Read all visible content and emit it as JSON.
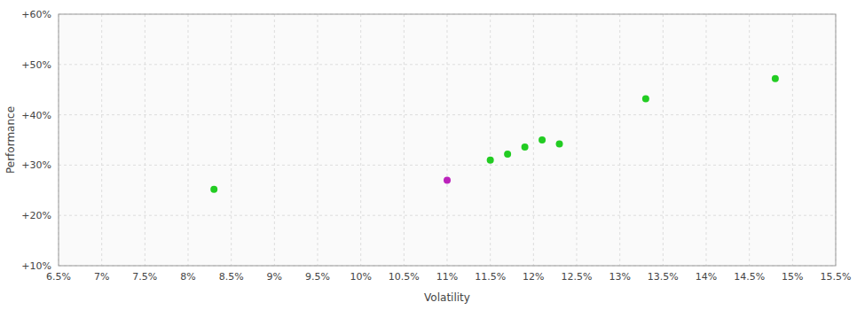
{
  "chart_data": {
    "type": "scatter",
    "xlabel": "Volatility",
    "ylabel": "Performance",
    "xlim": [
      0.065,
      0.155
    ],
    "ylim": [
      0.1,
      0.6
    ],
    "xticks": [
      {
        "value": 0.065,
        "label": "6.5%"
      },
      {
        "value": 0.07,
        "label": "7%"
      },
      {
        "value": 0.075,
        "label": "7.5%"
      },
      {
        "value": 0.08,
        "label": "8%"
      },
      {
        "value": 0.085,
        "label": "8.5%"
      },
      {
        "value": 0.09,
        "label": "9%"
      },
      {
        "value": 0.095,
        "label": "9.5%"
      },
      {
        "value": 0.1,
        "label": "10%"
      },
      {
        "value": 0.105,
        "label": "10.5%"
      },
      {
        "value": 0.11,
        "label": "11%"
      },
      {
        "value": 0.115,
        "label": "11.5%"
      },
      {
        "value": 0.12,
        "label": "12%"
      },
      {
        "value": 0.125,
        "label": "12.5%"
      },
      {
        "value": 0.13,
        "label": "13%"
      },
      {
        "value": 0.135,
        "label": "13.5%"
      },
      {
        "value": 0.14,
        "label": "14%"
      },
      {
        "value": 0.145,
        "label": "14.5%"
      },
      {
        "value": 0.15,
        "label": "15%"
      },
      {
        "value": 0.155,
        "label": "15.5%"
      }
    ],
    "yticks": [
      {
        "value": 0.1,
        "label": "+10%"
      },
      {
        "value": 0.2,
        "label": "+20%"
      },
      {
        "value": 0.3,
        "label": "+30%"
      },
      {
        "value": 0.4,
        "label": "+40%"
      },
      {
        "value": 0.5,
        "label": "+50%"
      },
      {
        "value": 0.6,
        "label": "+60%"
      }
    ],
    "grid": true,
    "series": [
      {
        "color": "#22cc22",
        "x": [
          0.083,
          0.115,
          0.117,
          0.119,
          0.121,
          0.123,
          0.133,
          0.148
        ],
        "values": [
          0.252,
          0.31,
          0.322,
          0.336,
          0.35,
          0.342,
          0.432,
          0.472
        ]
      },
      {
        "color": "#bb22bb",
        "x": [
          0.11
        ],
        "values": [
          0.27
        ]
      }
    ]
  }
}
